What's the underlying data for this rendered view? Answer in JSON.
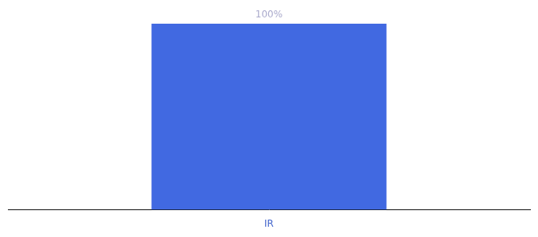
{
  "chart_data": {
    "type": "bar",
    "categories": [
      "IR"
    ],
    "values": [
      100
    ],
    "value_labels": [
      "100%"
    ],
    "data_labels": true,
    "color": "#4169E1",
    "ylim": [
      0,
      100
    ],
    "grid": false,
    "tick_labels": "x"
  }
}
